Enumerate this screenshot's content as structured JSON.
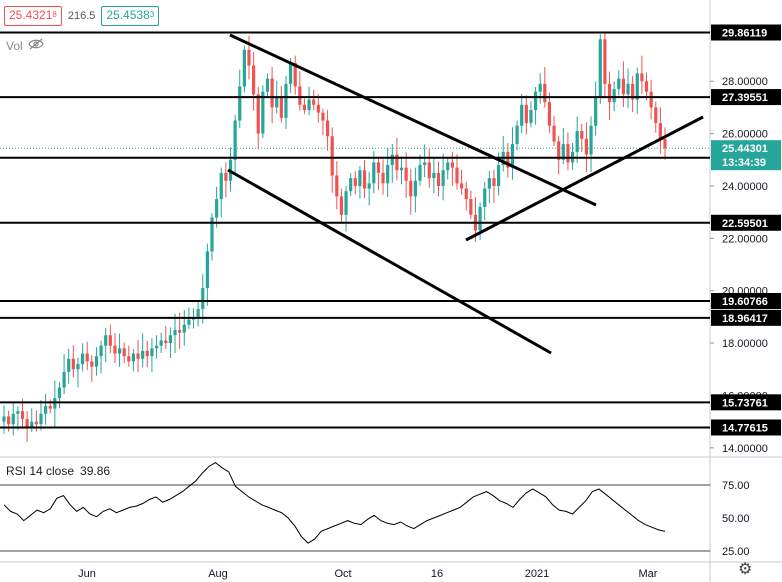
{
  "header": {
    "bid_main": "25.4321",
    "bid_small": "8",
    "spread": "216.5",
    "ask_main": "25.4538",
    "ask_small": "3",
    "volume_label": "Vol",
    "eye_icon": "eye-crossed-icon"
  },
  "rsi_panel": {
    "label": "RSI 14 close",
    "value": "39.86",
    "ticks": [
      "75.00",
      "50.00",
      "25.00"
    ]
  },
  "price_axis": {
    "ticks": [
      "28.00000",
      "26.00000",
      "24.00000",
      "22.00000",
      "20.00000",
      "18.00000",
      "16.00000",
      "14.00000"
    ],
    "level_labels": [
      "29.86119",
      "27.39551",
      "25.07561",
      "22.59501",
      "19.60766",
      "18.96417",
      "15.73761",
      "14.77615"
    ],
    "current_price": "25.44301",
    "countdown": "13:34:39"
  },
  "time_axis": {
    "ticks": [
      "Jun",
      "Aug",
      "Oct",
      "16",
      "2021",
      "Mar"
    ]
  },
  "footer": {
    "settings_icon": "gear-icon"
  },
  "colors": {
    "up": "#26a69a",
    "down": "#ef5350",
    "level_line": "#000000",
    "current_line": "#26a69a",
    "axis_text": "#131722"
  },
  "chart_data": {
    "type": "candlestick",
    "instrument_price_ylim": [
      14.0,
      30.5
    ],
    "rsi_ylim": [
      20,
      100
    ],
    "horizontal_levels": [
      29.86119,
      27.39551,
      25.07561,
      22.59501,
      19.60766,
      18.96417,
      15.73761,
      14.77615
    ],
    "current_price": 25.44301,
    "rsi_period": 14,
    "rsi_last": 39.86,
    "rsi_bands": [
      70,
      30
    ],
    "x_ticks": [
      "Jun",
      "Aug",
      "Oct",
      "16",
      "2021",
      "Mar"
    ],
    "price_path": [
      15.2,
      14.9,
      15.3,
      15.4,
      15.1,
      14.8,
      15.0,
      14.9,
      15.3,
      15.6,
      15.5,
      15.9,
      16.3,
      16.9,
      17.4,
      17.0,
      17.2,
      17.6,
      17.3,
      17.1,
      17.5,
      17.9,
      18.3,
      17.9,
      17.6,
      17.8,
      17.5,
      17.3,
      17.6,
      17.4,
      17.7,
      17.5,
      17.8,
      17.9,
      18.1,
      18.0,
      18.3,
      18.5,
      18.4,
      18.7,
      18.9,
      19.0,
      19.3,
      20.1,
      21.5,
      22.8,
      23.5,
      24.5,
      24.2,
      25.0,
      26.5,
      27.8,
      29.2,
      28.6,
      27.5,
      26.0,
      27.6,
      28.1,
      27.0,
      27.4,
      26.6,
      27.9,
      28.7,
      27.8,
      27.1,
      26.9,
      27.3,
      27.1,
      26.8,
      26.5,
      25.9,
      24.4,
      23.6,
      22.9,
      23.8,
      24.3,
      24.0,
      24.6,
      23.9,
      24.1,
      24.9,
      24.5,
      24.1,
      24.8,
      25.2,
      24.6,
      24.7,
      24.2,
      23.6,
      24.2,
      24.8,
      24.9,
      24.3,
      24.5,
      24.0,
      24.6,
      24.9,
      24.7,
      24.1,
      23.9,
      23.5,
      22.9,
      22.3,
      23.2,
      23.9,
      24.3,
      24.0,
      24.8,
      25.3,
      24.7,
      25.6,
      26.3,
      27.1,
      26.4,
      26.9,
      27.6,
      27.9,
      27.2,
      26.3,
      25.7,
      25.0,
      25.6,
      24.9,
      25.3,
      26.1,
      25.8,
      25.2,
      26.3,
      27.4,
      29.6,
      27.9,
      27.2,
      27.7,
      28.1,
      27.5,
      27.9,
      27.3,
      28.3,
      28.0,
      27.6,
      27.0,
      26.4,
      25.8,
      25.44
    ],
    "rsi_path": [
      60,
      55,
      53,
      48,
      52,
      56,
      54,
      57,
      65,
      67,
      60,
      55,
      58,
      53,
      51,
      55,
      57,
      54,
      56,
      58,
      59,
      61,
      64,
      66,
      62,
      64,
      67,
      70,
      74,
      78,
      84,
      89,
      92,
      88,
      85,
      74,
      70,
      66,
      63,
      60,
      58,
      56,
      54,
      50,
      44,
      36,
      31,
      34,
      40,
      42,
      44,
      46,
      48,
      46,
      45,
      49,
      52,
      48,
      46,
      45,
      47,
      44,
      42,
      45,
      48,
      50,
      52,
      54,
      56,
      58,
      62,
      66,
      68,
      70,
      67,
      63,
      61,
      58,
      64,
      69,
      72,
      69,
      66,
      60,
      56,
      55,
      53,
      58,
      63,
      70,
      72,
      68,
      64,
      60,
      56,
      52,
      48,
      45,
      43,
      41,
      39.86
    ],
    "trendlines": [
      {
        "from": {
          "date": "Aug",
          "value": 29.9
        },
        "to": {
          "date": "2021+",
          "value": 23.4
        }
      },
      {
        "from": {
          "date": "Aug",
          "value": 23.5
        },
        "to": {
          "date": "2021-",
          "value": 17.5
        }
      },
      {
        "from": {
          "date": "Dec",
          "value": 21.8
        },
        "to": {
          "date": "Mar+",
          "value": 27.0
        }
      }
    ]
  }
}
